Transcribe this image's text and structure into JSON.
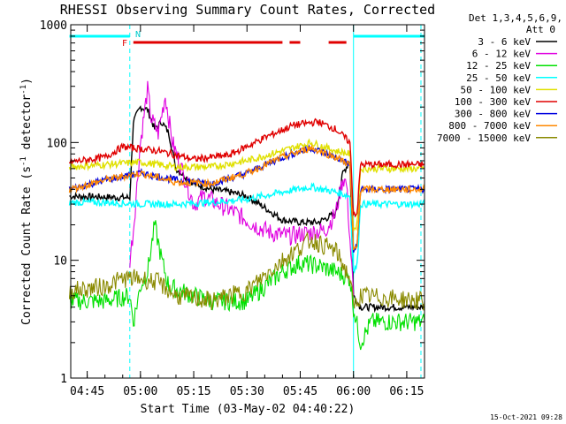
{
  "chart_data": {
    "type": "line",
    "title": "RHESSI Observing Summary Count Rates, Corrected",
    "xlabel": "Start Time (03-May-02 04:40:22)",
    "ylabel_main": "Corrected Count Rate (s",
    "ylabel_sup1": "-1",
    "ylabel_mid": " detector",
    "ylabel_sup2": "-1",
    "ylabel_end": ")",
    "yscale": "log",
    "ylim": [
      1,
      1000
    ],
    "xlim": [
      "04:40:22",
      "06:20:00"
    ],
    "x_ticks": [
      "04:45",
      "05:00",
      "05:15",
      "05:30",
      "05:45",
      "06:00",
      "06:15"
    ],
    "y_ticks": [
      "1",
      "10",
      "100",
      "1000"
    ],
    "legend_title": "Det 1,3,4,5,6,9,",
    "legend_subtitle": "Att 0",
    "flag_labels": {
      "flare": "F",
      "night": "N"
    },
    "timestamp": "15-Oct-2021 09:28",
    "series": [
      {
        "name": "3 - 6 keV",
        "color": "#000000",
        "points": [
          [
            "04:40",
            35
          ],
          [
            "04:57",
            34
          ],
          [
            "04:58",
            150
          ],
          [
            "05:00",
            200
          ],
          [
            "05:02",
            190
          ],
          [
            "05:04",
            130
          ],
          [
            "05:06",
            150
          ],
          [
            "05:08",
            120
          ],
          [
            "05:10",
            60
          ],
          [
            "05:15",
            45
          ],
          [
            "05:20",
            40
          ],
          [
            "05:25",
            38
          ],
          [
            "05:30",
            35
          ],
          [
            "05:35",
            28
          ],
          [
            "05:40",
            22
          ],
          [
            "05:45",
            21
          ],
          [
            "05:50",
            21
          ],
          [
            "05:55",
            25
          ],
          [
            "05:57",
            55
          ],
          [
            "05:59",
            70
          ],
          [
            "06:00",
            5
          ],
          [
            "06:02",
            4
          ],
          [
            "06:20",
            4
          ]
        ]
      },
      {
        "name": "6 - 12 keV",
        "color": "#e000e0",
        "points": [
          [
            "04:57",
            10
          ],
          [
            "04:58",
            18
          ],
          [
            "05:00",
            100
          ],
          [
            "05:02",
            280
          ],
          [
            "05:03",
            160
          ],
          [
            "05:05",
            120
          ],
          [
            "05:07",
            250
          ],
          [
            "05:09",
            100
          ],
          [
            "05:12",
            55
          ],
          [
            "05:15",
            30
          ],
          [
            "05:18",
            35
          ],
          [
            "05:22",
            30
          ],
          [
            "05:27",
            25
          ],
          [
            "05:32",
            20
          ],
          [
            "05:37",
            17
          ],
          [
            "05:42",
            16
          ],
          [
            "05:47",
            17
          ],
          [
            "05:52",
            18
          ],
          [
            "05:55",
            25
          ],
          [
            "05:57",
            50
          ],
          [
            "05:58",
            45
          ],
          [
            "06:00",
            5
          ]
        ]
      },
      {
        "name": "12 - 25 keV",
        "color": "#00e000",
        "points": [
          [
            "04:40",
            4.5
          ],
          [
            "04:50",
            4.5
          ],
          [
            "04:57",
            5
          ],
          [
            "04:58",
            3
          ],
          [
            "05:00",
            6
          ],
          [
            "05:02",
            8
          ],
          [
            "05:04",
            20
          ],
          [
            "05:06",
            10
          ],
          [
            "05:08",
            6
          ],
          [
            "05:15",
            5
          ],
          [
            "05:20",
            4.5
          ],
          [
            "05:30",
            4.5
          ],
          [
            "05:35",
            6
          ],
          [
            "05:40",
            8
          ],
          [
            "05:45",
            9.5
          ],
          [
            "05:50",
            9
          ],
          [
            "05:55",
            8
          ],
          [
            "05:59",
            7
          ],
          [
            "06:00",
            4
          ],
          [
            "06:02",
            2
          ],
          [
            "06:05",
            3
          ],
          [
            "06:15",
            3
          ],
          [
            "06:20",
            3
          ]
        ]
      },
      {
        "name": "25 - 50 keV",
        "color": "#00ffff",
        "points": [
          [
            "04:40",
            31
          ],
          [
            "04:50",
            31
          ],
          [
            "05:00",
            30
          ],
          [
            "05:10",
            30
          ],
          [
            "05:20",
            31
          ],
          [
            "05:30",
            33
          ],
          [
            "05:40",
            38
          ],
          [
            "05:48",
            42
          ],
          [
            "05:55",
            38
          ],
          [
            "05:59",
            35
          ],
          [
            "06:00",
            8
          ],
          [
            "06:01",
            9
          ],
          [
            "06:02",
            30
          ],
          [
            "06:15",
            30
          ],
          [
            "06:20",
            30
          ]
        ]
      },
      {
        "name": "50 - 100 keV",
        "color": "#e0e000",
        "points": [
          [
            "04:40",
            62
          ],
          [
            "04:50",
            65
          ],
          [
            "05:00",
            68
          ],
          [
            "05:10",
            62
          ],
          [
            "05:20",
            62
          ],
          [
            "05:30",
            70
          ],
          [
            "05:40",
            85
          ],
          [
            "05:48",
            100
          ],
          [
            "05:55",
            85
          ],
          [
            "05:59",
            80
          ],
          [
            "06:00",
            18
          ],
          [
            "06:01",
            20
          ],
          [
            "06:02",
            60
          ],
          [
            "06:20",
            60
          ]
        ]
      },
      {
        "name": "100 - 300 keV",
        "color": "#e00000",
        "points": [
          [
            "04:40",
            68
          ],
          [
            "04:50",
            75
          ],
          [
            "04:55",
            92
          ],
          [
            "05:05",
            85
          ],
          [
            "05:15",
            72
          ],
          [
            "05:25",
            78
          ],
          [
            "05:35",
            110
          ],
          [
            "05:43",
            140
          ],
          [
            "05:50",
            150
          ],
          [
            "05:55",
            130
          ],
          [
            "05:59",
            100
          ],
          [
            "06:00",
            25
          ],
          [
            "06:01",
            25
          ],
          [
            "06:02",
            65
          ],
          [
            "06:20",
            65
          ]
        ]
      },
      {
        "name": "300 - 800 keV",
        "color": "#0000e0",
        "points": [
          [
            "04:40",
            40
          ],
          [
            "04:50",
            48
          ],
          [
            "05:00",
            55
          ],
          [
            "05:10",
            48
          ],
          [
            "05:20",
            45
          ],
          [
            "05:30",
            55
          ],
          [
            "05:40",
            75
          ],
          [
            "05:48",
            90
          ],
          [
            "05:55",
            75
          ],
          [
            "05:59",
            65
          ],
          [
            "06:00",
            12
          ],
          [
            "06:01",
            13
          ],
          [
            "06:02",
            40
          ],
          [
            "06:20",
            40
          ]
        ]
      },
      {
        "name": "800 - 7000 keV",
        "color": "#ff8800",
        "points": [
          [
            "04:40",
            40
          ],
          [
            "04:50",
            48
          ],
          [
            "05:00",
            55
          ],
          [
            "05:10",
            46
          ],
          [
            "05:20",
            45
          ],
          [
            "05:30",
            55
          ],
          [
            "05:40",
            75
          ],
          [
            "05:48",
            90
          ],
          [
            "05:55",
            75
          ],
          [
            "05:59",
            65
          ],
          [
            "06:00",
            12
          ],
          [
            "06:01",
            13
          ],
          [
            "06:02",
            40
          ],
          [
            "06:20",
            40
          ]
        ]
      },
      {
        "name": "7000 - 15000 keV",
        "color": "#8a8a00",
        "points": [
          [
            "04:40",
            5.5
          ],
          [
            "04:50",
            6
          ],
          [
            "04:55",
            7
          ],
          [
            "05:00",
            7
          ],
          [
            "05:05",
            6.5
          ],
          [
            "05:10",
            5
          ],
          [
            "05:20",
            4.5
          ],
          [
            "05:30",
            5.5
          ],
          [
            "05:40",
            10
          ],
          [
            "05:48",
            15
          ],
          [
            "05:55",
            12
          ],
          [
            "05:59",
            7
          ],
          [
            "06:00",
            4
          ],
          [
            "06:02",
            5
          ],
          [
            "06:20",
            4.5
          ]
        ]
      }
    ],
    "flags": {
      "night": {
        "color": "#00ffff",
        "segments": [
          [
            "04:40",
            "04:57"
          ],
          [
            "06:00",
            "06:20"
          ]
        ]
      },
      "flare": {
        "color": "#e00000",
        "segments": [
          [
            "04:58",
            "05:40"
          ],
          [
            "05:42",
            "05:45"
          ],
          [
            "05:53",
            "05:58"
          ]
        ]
      },
      "eclipse_lines": [
        "04:57",
        "06:00",
        "06:19"
      ]
    }
  }
}
